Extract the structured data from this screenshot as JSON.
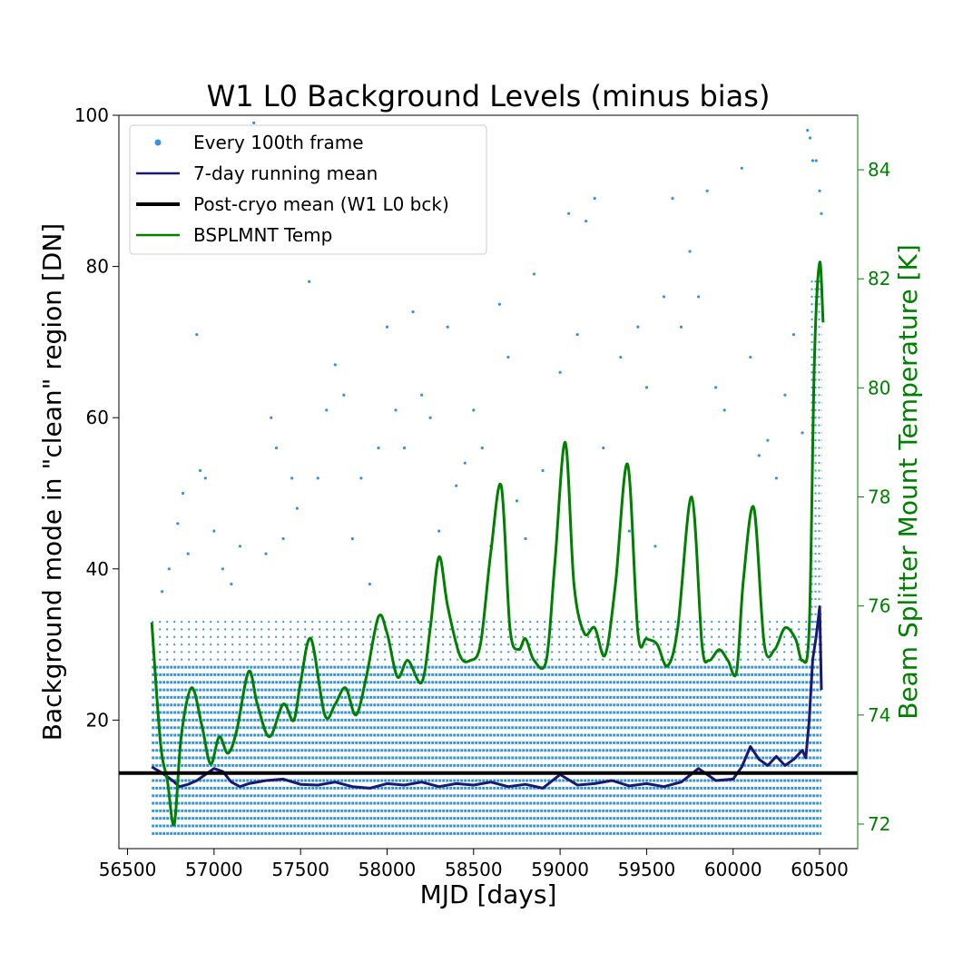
{
  "chart_data": {
    "type": "scatter",
    "title": "W1 L0 Background Levels (minus bias)",
    "xlabel": "MJD [days]",
    "ylabel": "Background mode in \"clean\" region [DN]",
    "ylabel_right": "Beam Splitter Mount Temperature [K]",
    "xlim": [
      56450,
      60720
    ],
    "ylim": [
      3,
      100
    ],
    "ylim_right": [
      71.55,
      85.0
    ],
    "x_ticks": [
      56500,
      57000,
      57500,
      58000,
      58500,
      59000,
      59500,
      60000,
      60500
    ],
    "y_ticks": [
      20,
      40,
      60,
      80,
      100
    ],
    "y_ticks_right": [
      72,
      74,
      76,
      78,
      80,
      82,
      84
    ],
    "grid": false,
    "legend_position": "top-left",
    "legend": [
      {
        "label": "Every 100th frame",
        "kind": "dot",
        "color": "#3593e4"
      },
      {
        "label": "7-day running mean",
        "kind": "line",
        "color": "#191970"
      },
      {
        "label": "Post-cryo mean (W1 L0 bck)",
        "kind": "thick-line",
        "color": "#000000"
      },
      {
        "label": "BSPLMNT Temp",
        "kind": "line",
        "color": "#008000"
      }
    ],
    "colors": {
      "scatter": "#3593e4",
      "running_mean": "#191970",
      "post_cryo": "#000000",
      "temperature": "#008000",
      "right_axis": "#008000"
    },
    "series": [
      {
        "kind": "scatter",
        "x_range": [
          56640,
          60510
        ],
        "y_levels_dense": [
          5,
          6,
          7,
          8,
          9,
          10,
          11,
          12,
          13,
          14,
          15,
          16,
          17,
          18,
          19,
          20,
          21,
          22,
          23,
          24,
          25,
          26,
          27
        ],
        "y_levels_sparse_max": 33,
        "outliers": [
          [
            56700,
            37
          ],
          [
            56740,
            40
          ],
          [
            56790,
            46
          ],
          [
            56820,
            50
          ],
          [
            56850,
            42
          ],
          [
            56900,
            71
          ],
          [
            56920,
            53
          ],
          [
            56950,
            52
          ],
          [
            57000,
            45
          ],
          [
            57050,
            40
          ],
          [
            57100,
            38
          ],
          [
            57150,
            43
          ],
          [
            57230,
            99
          ],
          [
            57300,
            42
          ],
          [
            57330,
            60
          ],
          [
            57360,
            56
          ],
          [
            57400,
            44
          ],
          [
            57450,
            52
          ],
          [
            57480,
            48
          ],
          [
            57550,
            78
          ],
          [
            57600,
            52
          ],
          [
            57650,
            61
          ],
          [
            57700,
            67
          ],
          [
            57750,
            63
          ],
          [
            57800,
            44
          ],
          [
            57850,
            52
          ],
          [
            57900,
            38
          ],
          [
            57950,
            56
          ],
          [
            58000,
            72
          ],
          [
            58050,
            61
          ],
          [
            58100,
            56
          ],
          [
            58150,
            74
          ],
          [
            58200,
            63
          ],
          [
            58250,
            60
          ],
          [
            58300,
            45
          ],
          [
            58350,
            72
          ],
          [
            58400,
            51
          ],
          [
            58450,
            54
          ],
          [
            58500,
            61
          ],
          [
            58550,
            56
          ],
          [
            58600,
            43
          ],
          [
            58650,
            75
          ],
          [
            58700,
            68
          ],
          [
            58750,
            49
          ],
          [
            58800,
            44
          ],
          [
            58850,
            79
          ],
          [
            58900,
            53
          ],
          [
            59000,
            66
          ],
          [
            59050,
            87
          ],
          [
            59100,
            71
          ],
          [
            59150,
            86
          ],
          [
            59200,
            89
          ],
          [
            59250,
            56
          ],
          [
            59350,
            68
          ],
          [
            59400,
            45
          ],
          [
            59450,
            72
          ],
          [
            59500,
            64
          ],
          [
            59550,
            43
          ],
          [
            59600,
            76
          ],
          [
            59650,
            89
          ],
          [
            59700,
            72
          ],
          [
            59750,
            82
          ],
          [
            59800,
            76
          ],
          [
            59850,
            90
          ],
          [
            59900,
            64
          ],
          [
            59950,
            61
          ],
          [
            60050,
            93
          ],
          [
            60100,
            68
          ],
          [
            60150,
            55
          ],
          [
            60200,
            57
          ],
          [
            60250,
            52
          ],
          [
            60300,
            63
          ],
          [
            60350,
            71
          ],
          [
            60400,
            58
          ],
          [
            60430,
            98
          ],
          [
            60445,
            97
          ],
          [
            60460,
            94
          ],
          [
            60480,
            94
          ],
          [
            60500,
            90
          ],
          [
            60510,
            87
          ]
        ]
      },
      {
        "kind": "line",
        "x": [
          56640,
          56700,
          56760,
          56800,
          56850,
          56900,
          56950,
          57000,
          57050,
          57100,
          57150,
          57200,
          57300,
          57400,
          57500,
          57600,
          57700,
          57800,
          57900,
          58000,
          58100,
          58200,
          58300,
          58400,
          58500,
          58600,
          58700,
          58800,
          58900,
          59000,
          59100,
          59200,
          59300,
          59400,
          59500,
          59600,
          59700,
          59800,
          59900,
          60000,
          60050,
          60100,
          60150,
          60200,
          60250,
          60300,
          60350,
          60400,
          60420,
          60440,
          60460,
          60480,
          60500,
          60510
        ],
        "values": [
          13.8,
          13.0,
          12.0,
          11.2,
          11.5,
          12.0,
          12.8,
          13.6,
          13.2,
          11.8,
          11.2,
          11.6,
          12.0,
          12.2,
          11.5,
          11.4,
          11.8,
          11.2,
          11.0,
          11.6,
          11.4,
          11.8,
          11.2,
          11.6,
          11.4,
          11.8,
          11.2,
          11.5,
          11.0,
          12.8,
          11.4,
          11.6,
          12.0,
          11.3,
          11.6,
          11.2,
          11.8,
          13.6,
          12.0,
          12.2,
          13.8,
          16.5,
          14.8,
          14.0,
          15.2,
          14.0,
          14.8,
          16.0,
          15.0,
          20.0,
          28.0,
          31.0,
          35.0,
          24.0
        ]
      },
      {
        "kind": "hline",
        "x_range": [
          56450,
          60720
        ],
        "value": 13.0
      },
      {
        "kind": "line",
        "axis": "right",
        "x": [
          56640,
          56690,
          56730,
          56770,
          56810,
          56870,
          56930,
          56980,
          57030,
          57080,
          57130,
          57200,
          57250,
          57320,
          57400,
          57460,
          57500,
          57560,
          57640,
          57700,
          57760,
          57820,
          57880,
          57950,
          58000,
          58060,
          58120,
          58200,
          58250,
          58300,
          58350,
          58420,
          58480,
          58540,
          58600,
          58660,
          58710,
          58760,
          58800,
          58850,
          58920,
          58970,
          59030,
          59080,
          59140,
          59200,
          59260,
          59320,
          59390,
          59450,
          59500,
          59560,
          59620,
          59680,
          59760,
          59820,
          59860,
          59920,
          59970,
          60020,
          60060,
          60120,
          60180,
          60240,
          60300,
          60360,
          60400,
          60440,
          60470,
          60500,
          60520
        ],
        "values": [
          75.7,
          73.5,
          72.8,
          72.0,
          73.6,
          74.5,
          73.8,
          73.1,
          73.6,
          73.3,
          73.7,
          74.8,
          74.2,
          73.6,
          74.2,
          73.9,
          74.6,
          75.4,
          74.0,
          74.2,
          74.5,
          74.0,
          74.7,
          75.8,
          75.5,
          74.7,
          75.0,
          74.6,
          75.6,
          76.9,
          76.0,
          75.1,
          75.0,
          75.3,
          77.0,
          78.2,
          75.6,
          75.2,
          75.4,
          75.0,
          75.0,
          76.8,
          79.0,
          76.4,
          75.5,
          75.6,
          75.1,
          76.4,
          78.6,
          75.5,
          75.4,
          75.3,
          74.9,
          75.6,
          78.0,
          75.3,
          75.0,
          75.2,
          75.0,
          74.8,
          76.5,
          77.8,
          75.3,
          75.2,
          75.6,
          75.4,
          75.0,
          75.6,
          80.5,
          82.3,
          81.2
        ]
      }
    ]
  }
}
